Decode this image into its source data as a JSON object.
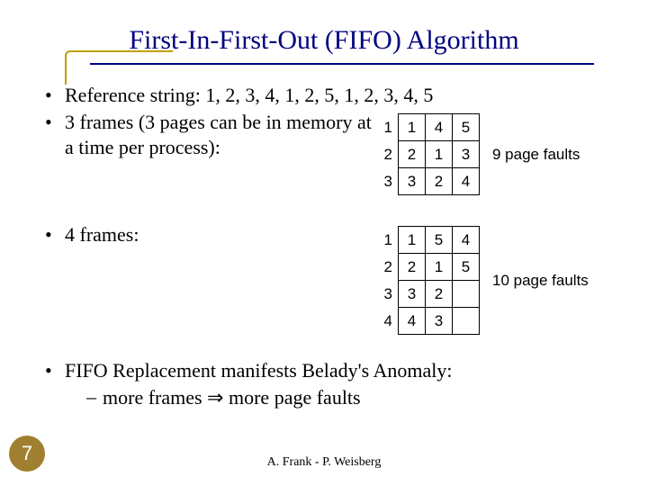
{
  "title": "First-In-First-Out (FIFO) Algorithm",
  "bullets": {
    "refString": "Reference string: 1, 2, 3, 4, 1, 2, 5, 1, 2, 3, 4, 5",
    "threeFrames": "3 frames (3 pages can be in memory at a time per process):",
    "fourFrames": "4 frames:",
    "belady": "FIFO Replacement manifests Belady's Anomaly:",
    "beladySub": "more frames ⇒ more page faults"
  },
  "table3": {
    "rowLabels": [
      "1",
      "2",
      "3"
    ],
    "rows": [
      [
        "1",
        "4",
        "5"
      ],
      [
        "2",
        "1",
        "3"
      ],
      [
        "3",
        "2",
        "4"
      ]
    ],
    "faultLabel": "9 page faults"
  },
  "table4": {
    "rowLabels": [
      "1",
      "2",
      "3",
      "4"
    ],
    "rows": [
      [
        "1",
        "5",
        "4"
      ],
      [
        "2",
        "1",
        "5"
      ],
      [
        "3",
        "2",
        ""
      ],
      [
        "4",
        "3",
        ""
      ]
    ],
    "faultLabel": "10 page faults"
  },
  "pageNumber": "7",
  "footer": "A. Frank - P. Weisberg",
  "colors": {
    "titleColor": "#000080",
    "accentColor": "#c0a000",
    "pageNumBg": "#a08030"
  }
}
